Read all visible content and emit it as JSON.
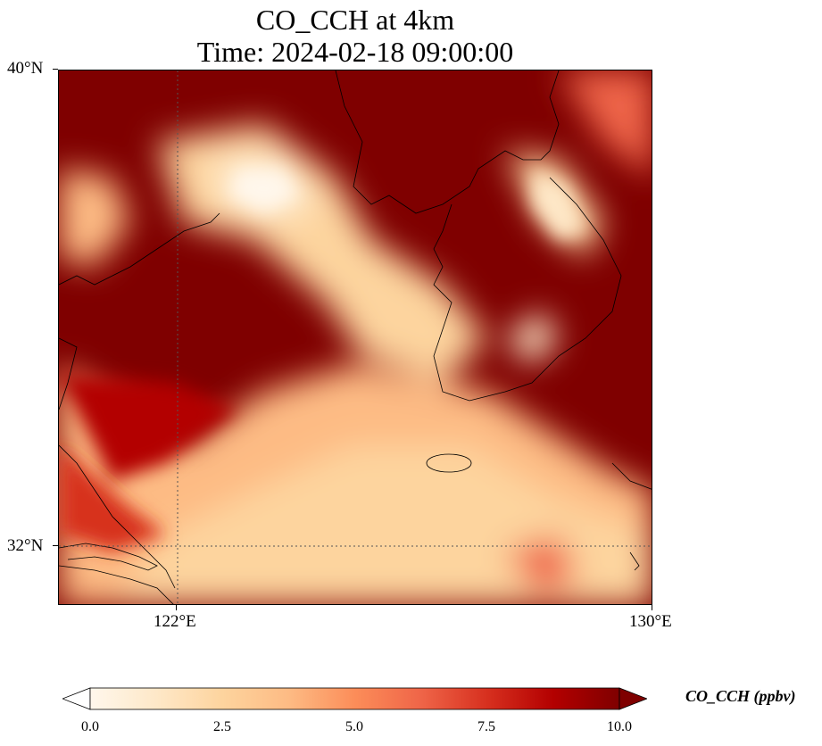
{
  "title": {
    "line1": "CO_CCH at 4km",
    "line2": "Time: 2024-02-18 09:00:00"
  },
  "axes": {
    "lat_labels": [
      "40°N",
      "32°N"
    ],
    "lon_labels": [
      "122°E",
      "130°E"
    ],
    "lon_range": [
      120,
      130
    ],
    "lat_range": [
      31,
      40
    ],
    "gridlines": "dotted"
  },
  "colorbar": {
    "label": "CO_CCH (ppbv)",
    "ticks": [
      "0.0",
      "2.5",
      "5.0",
      "7.5",
      "10.0"
    ],
    "range": [
      0,
      10
    ],
    "colormap": "OrRd",
    "extend": "both",
    "colors": [
      "#fff7ec",
      "#fee8c8",
      "#fdd49e",
      "#fdbb84",
      "#fc8d59",
      "#ef6548",
      "#d7301f",
      "#b30000",
      "#7f0000"
    ]
  }
}
